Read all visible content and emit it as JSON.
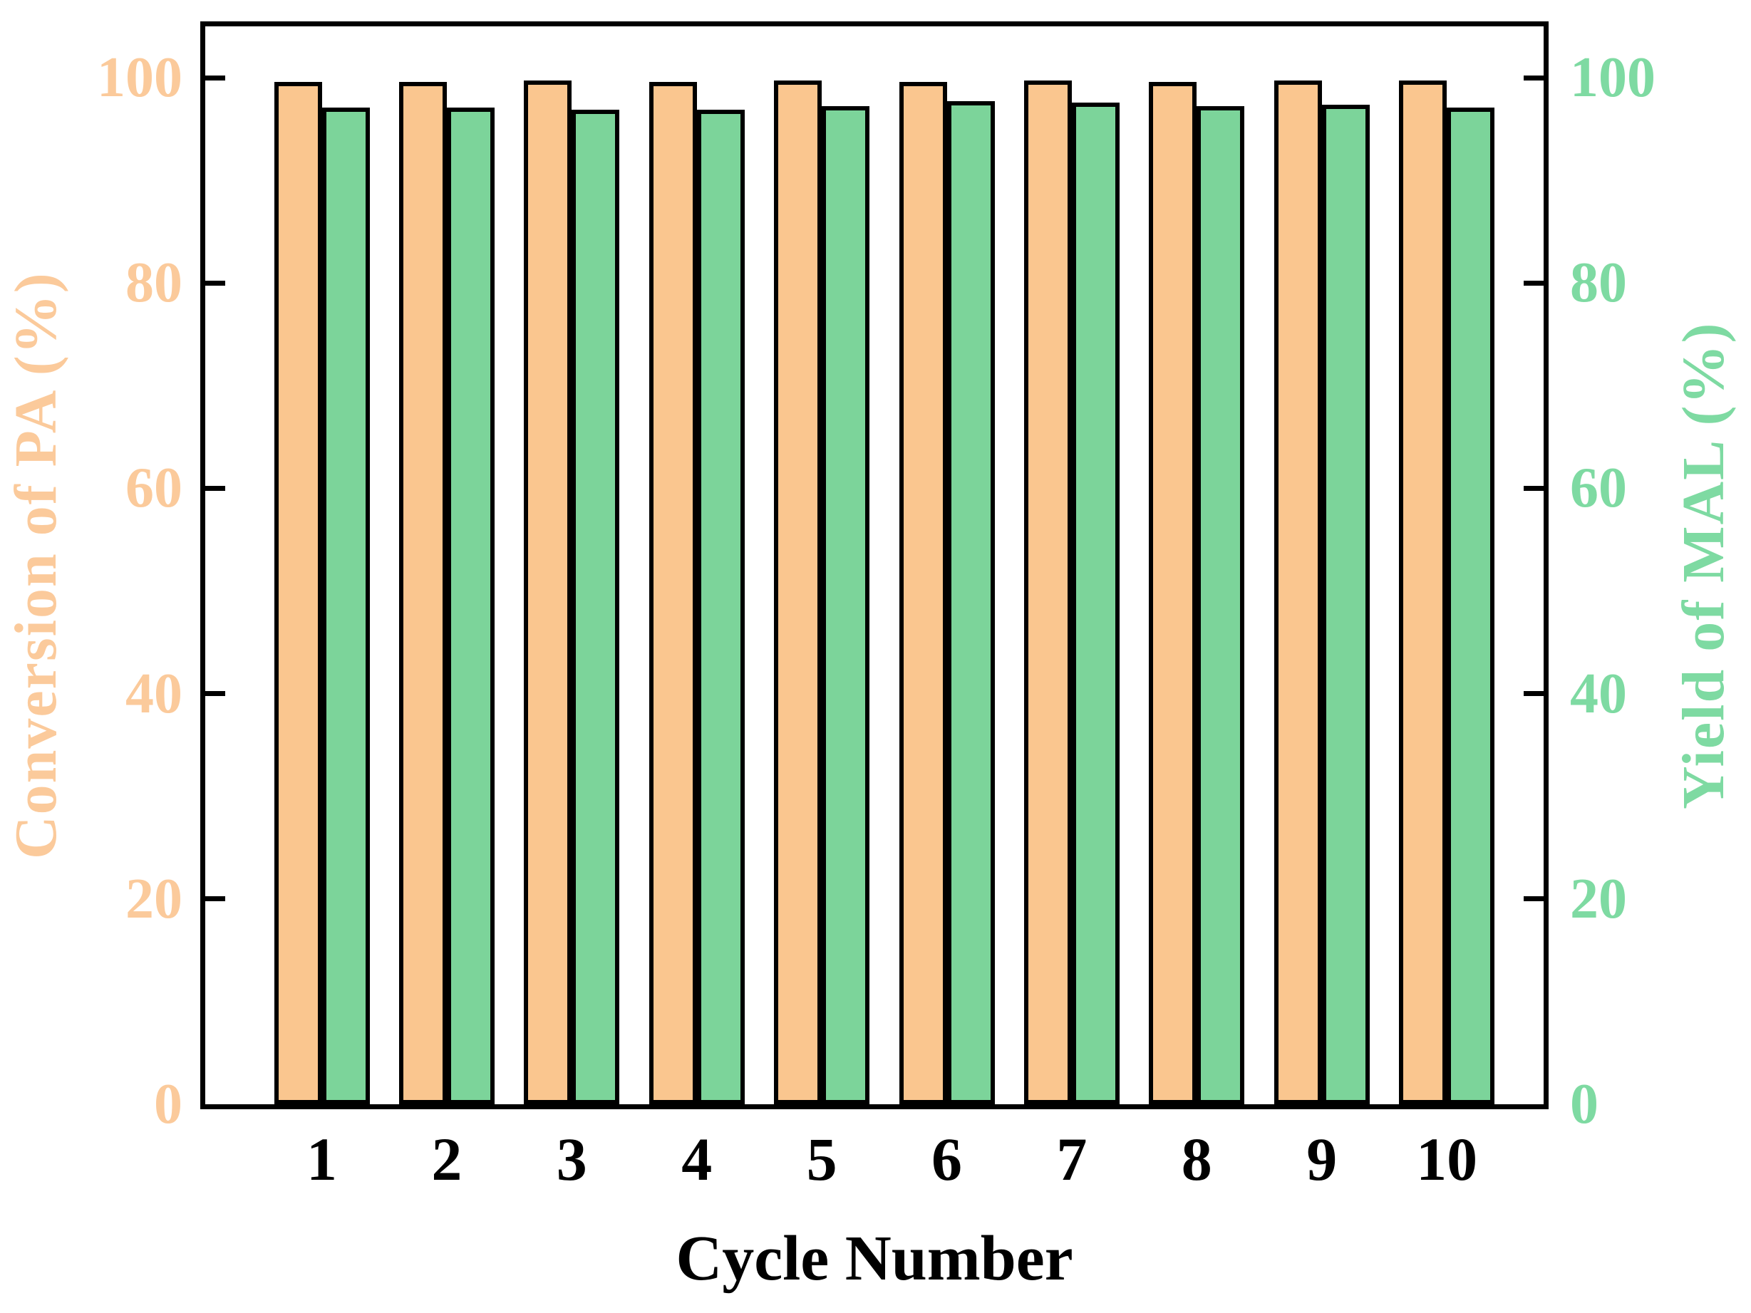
{
  "figure": {
    "background": "#ffffff",
    "frame_color": "#000000"
  },
  "chart_data": {
    "type": "bar",
    "categories": [
      "1",
      "2",
      "3",
      "4",
      "5",
      "6",
      "7",
      "8",
      "9",
      "10"
    ],
    "series": [
      {
        "name": "Conversion of PA (%)",
        "axis": "left",
        "color": "#FAC68F",
        "values": [
          99.6,
          99.6,
          99.7,
          99.6,
          99.7,
          99.6,
          99.7,
          99.6,
          99.7,
          99.7
        ]
      },
      {
        "name": "Yield of MAL (%)",
        "axis": "right",
        "color": "#7CD49A",
        "values": [
          97.1,
          97.1,
          96.9,
          96.9,
          97.2,
          97.7,
          97.6,
          97.2,
          97.4,
          97.1
        ]
      }
    ],
    "xlabel": "Cycle Number",
    "left_axis": {
      "title": "Conversion of PA (%)",
      "color": "#FBCA9B",
      "tick_labels": [
        "0",
        "20",
        "40",
        "60",
        "80",
        "100"
      ],
      "tick_values": [
        0,
        20,
        40,
        60,
        80,
        100
      ]
    },
    "right_axis": {
      "title": "Yield of MAL (%)",
      "color": "#7EDAA2",
      "tick_labels": [
        "0",
        "20",
        "40",
        "60",
        "80",
        "100"
      ],
      "tick_values": [
        0,
        20,
        40,
        60,
        80,
        100
      ]
    },
    "ylim": [
      0,
      105
    ],
    "bar_edge_color": "#000000",
    "grid": false,
    "legend": null
  }
}
